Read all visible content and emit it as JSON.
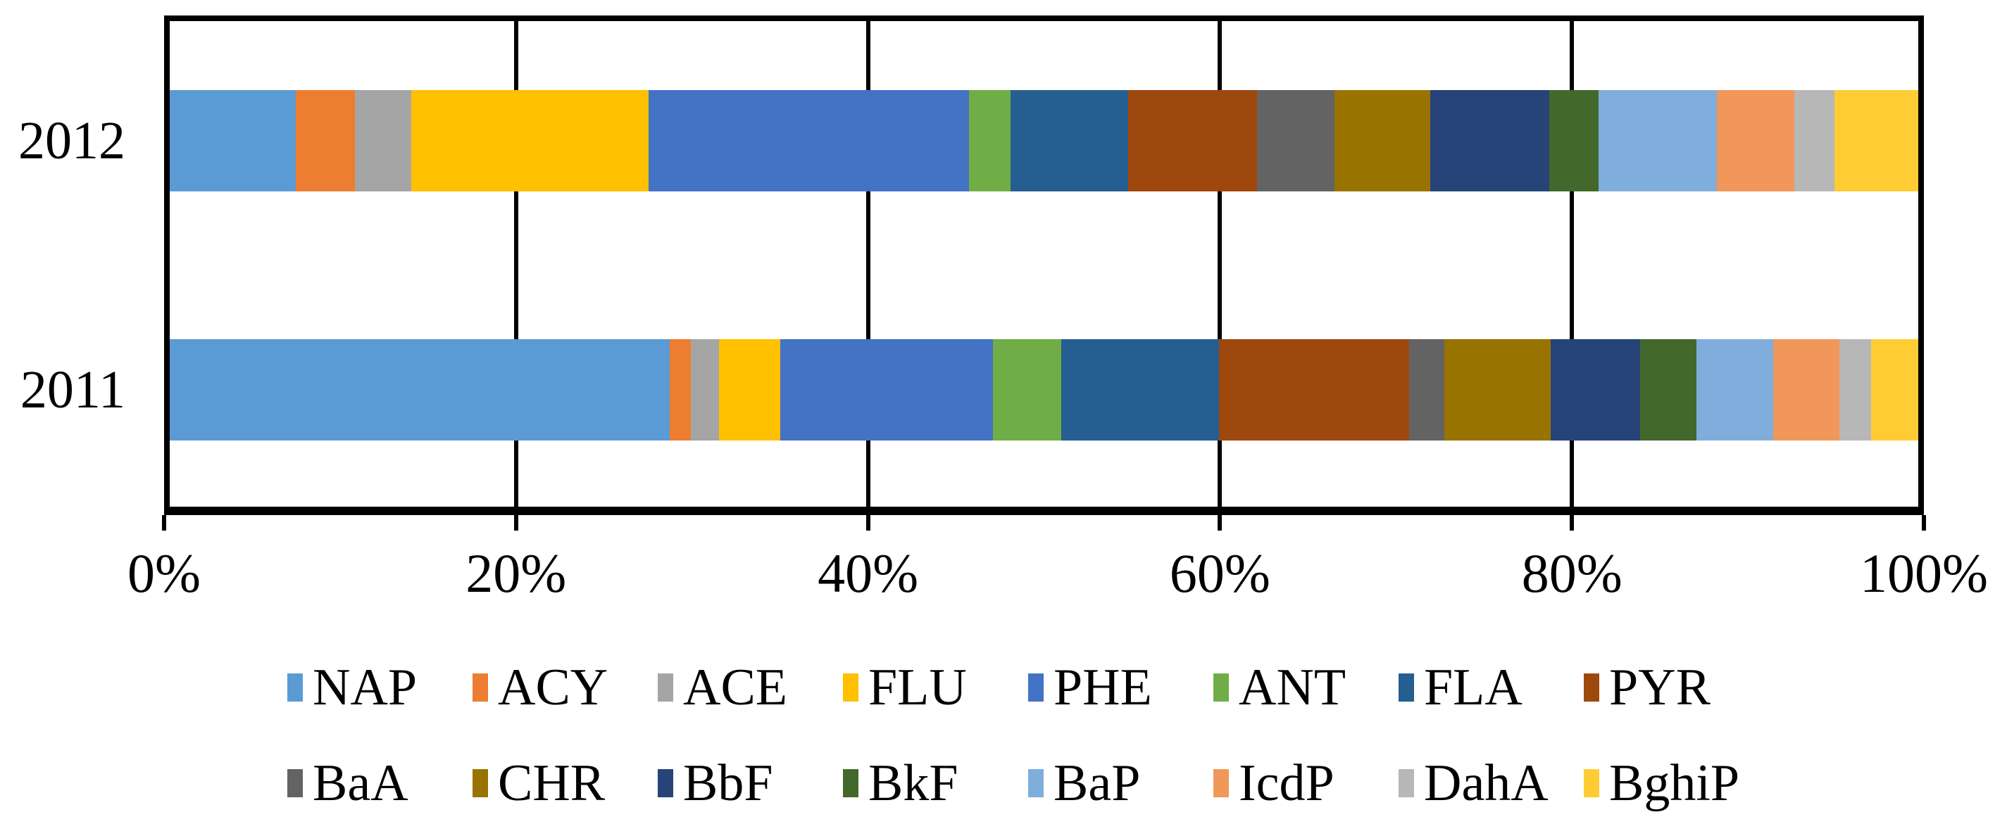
{
  "chart_data": {
    "type": "bar",
    "variant": "horizontal-100pct-stacked",
    "title": "",
    "xlabel": "",
    "ylabel": "",
    "categories": [
      "2012",
      "2011"
    ],
    "axis_range": [
      0,
      100
    ],
    "grid": true,
    "legend_position": "bottom",
    "legend_items_per_row": 8,
    "x_ticks": [
      {
        "value": 0,
        "label": "0%"
      },
      {
        "value": 20,
        "label": "20%"
      },
      {
        "value": 40,
        "label": "40%"
      },
      {
        "value": 60,
        "label": "60%"
      },
      {
        "value": 80,
        "label": "80%"
      },
      {
        "value": 100,
        "label": "100%"
      }
    ],
    "series": [
      {
        "name": "NAP",
        "color": "#5B9BD5",
        "values": [
          7.2,
          28.6
        ]
      },
      {
        "name": "ACY",
        "color": "#ED7D31",
        "values": [
          3.4,
          1.2
        ]
      },
      {
        "name": "ACE",
        "color": "#A5A5A5",
        "values": [
          3.2,
          1.6
        ]
      },
      {
        "name": "FLU",
        "color": "#FFC000",
        "values": [
          13.6,
          3.5
        ]
      },
      {
        "name": "PHE",
        "color": "#4472C4",
        "values": [
          18.3,
          12.2
        ]
      },
      {
        "name": "ANT",
        "color": "#70AD47",
        "values": [
          2.4,
          3.9
        ]
      },
      {
        "name": "FLA",
        "color": "#255E91",
        "values": [
          6.7,
          9.0
        ]
      },
      {
        "name": "PYR",
        "color": "#9E480E",
        "values": [
          7.4,
          10.9
        ]
      },
      {
        "name": "BaA",
        "color": "#636363",
        "values": [
          4.4,
          2.0
        ]
      },
      {
        "name": "CHR",
        "color": "#997300",
        "values": [
          5.5,
          6.1
        ]
      },
      {
        "name": "BbF",
        "color": "#264478",
        "values": [
          6.8,
          5.1
        ]
      },
      {
        "name": "BkF",
        "color": "#43682B",
        "values": [
          2.8,
          3.2
        ]
      },
      {
        "name": "BaP",
        "color": "#7FAEDC",
        "values": [
          6.8,
          4.4
        ]
      },
      {
        "name": "IcdP",
        "color": "#F1975A",
        "values": [
          4.4,
          3.8
        ]
      },
      {
        "name": "DahA",
        "color": "#B7B7B7",
        "values": [
          2.3,
          1.8
        ]
      },
      {
        "name": "BghiP",
        "color": "#FFCD33",
        "values": [
          4.8,
          2.7
        ]
      }
    ]
  }
}
